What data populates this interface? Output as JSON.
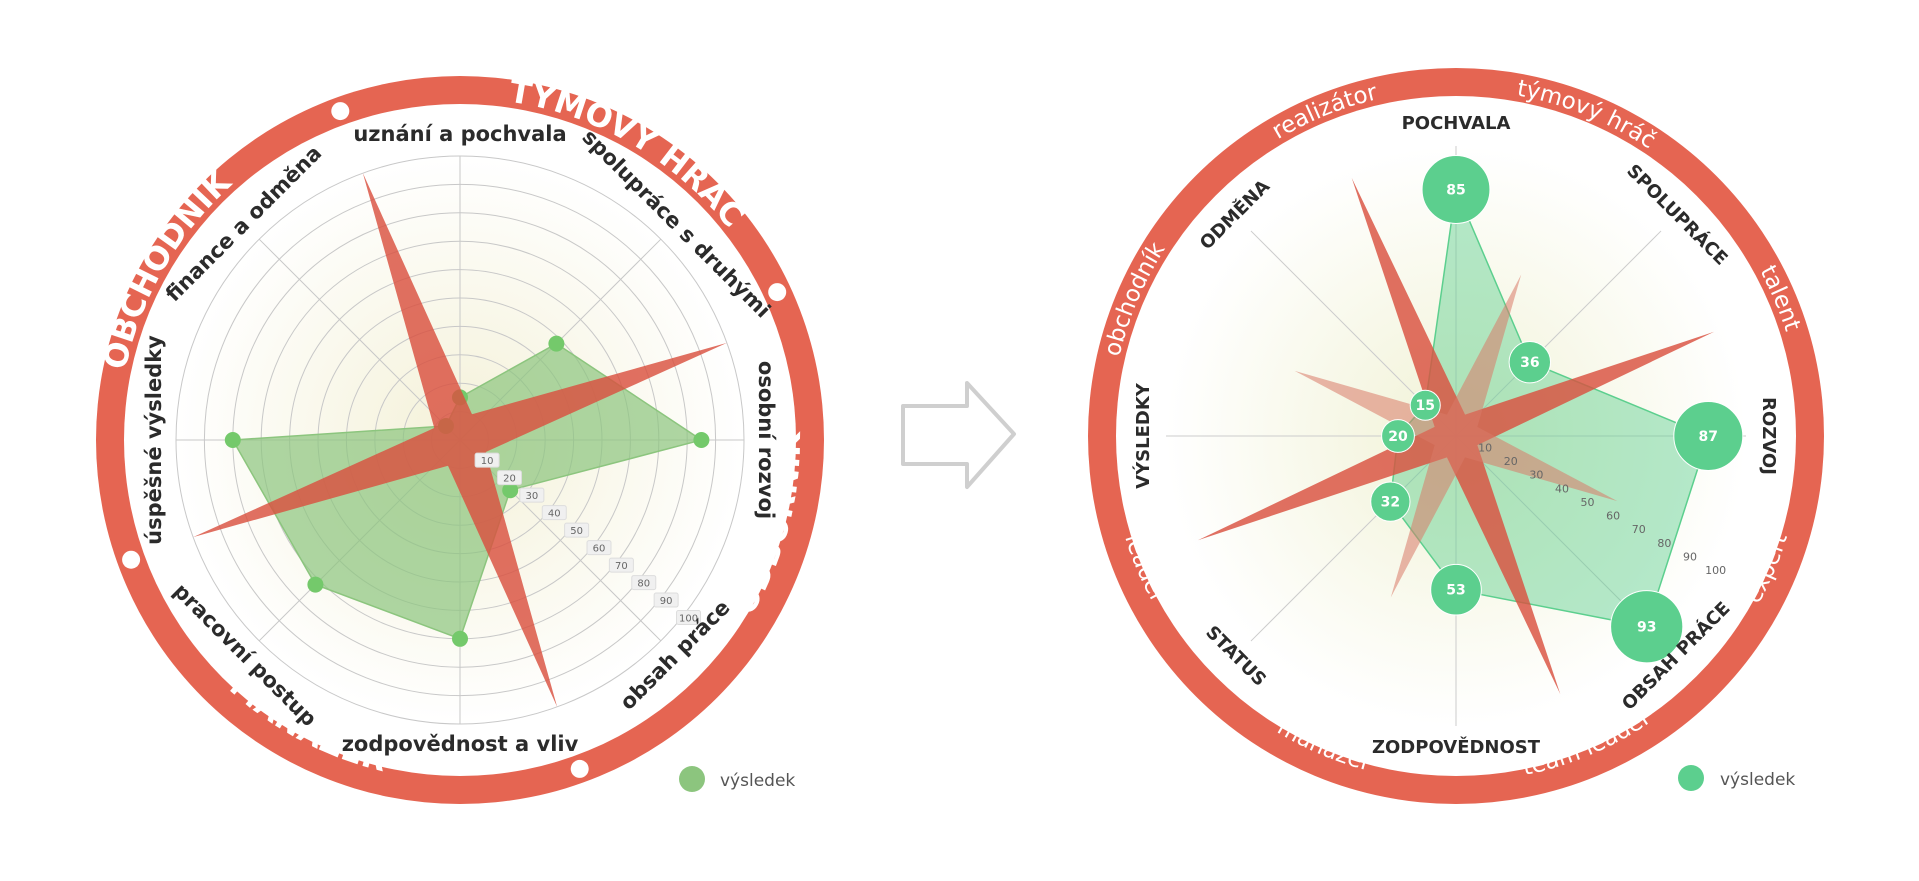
{
  "colors": {
    "ring": "#e56552",
    "star": "#d9503f",
    "left_series": "#8cc57e",
    "left_marker": "#74c96b",
    "right_series": "#5ccf8e",
    "arrow": "#cfcfcf",
    "legend_text": "#555555",
    "grid": "#c8c8c8"
  },
  "chart_data": [
    {
      "type": "radar",
      "ring_titles": [
        "TÝMOVÝ HRÁČ",
        "ODBORNÍK",
        "MANAŽER",
        "OBCHODNÍK"
      ],
      "categories": [
        "uznání a pochvala",
        "spolupráce s druhými",
        "osobní rozvoj",
        "obsah práce",
        "zodpovědnost a vliv",
        "pracovní postup",
        "úspěšné výsledky",
        "finance a odměna"
      ],
      "ticks": [
        "10",
        "20",
        "30",
        "40",
        "50",
        "60",
        "70",
        "80",
        "90",
        "100"
      ],
      "rmax": 100,
      "series": [
        {
          "name": "výsledek",
          "values": [
            15,
            48,
            85,
            25,
            70,
            72,
            80,
            7
          ]
        }
      ],
      "star_values": [
        100,
        10,
        100,
        10,
        100,
        10,
        100,
        10
      ],
      "legend": {
        "label": "výsledek",
        "position": "bottom-right"
      }
    },
    {
      "type": "radar-bubble",
      "ring_labels": [
        "týmový hráč",
        "talent",
        "expert",
        "team leader",
        "manažer",
        "leader",
        "obchodník",
        "realizátor"
      ],
      "categories": [
        "POCHVALA",
        "SPOLUPRÁCE",
        "ROZVOJ",
        "OBSAH PRÁCE",
        "ZODPOVĚDNOST",
        "STATUS",
        "VÝSLEDKY",
        "ODMĚNA"
      ],
      "ticks": [
        "10",
        "20",
        "30",
        "40",
        "50",
        "60",
        "70",
        "80",
        "90",
        "100"
      ],
      "rmax": 100,
      "series": [
        {
          "name": "výsledek",
          "values": [
            85,
            36,
            87,
            93,
            53,
            32,
            20,
            15
          ]
        }
      ],
      "value_labels": [
        "85",
        "36",
        "87",
        "93",
        "53",
        "32",
        "20",
        "15"
      ],
      "star_values": [
        96,
        8,
        96,
        8,
        96,
        8,
        96,
        8
      ],
      "inner_star_values": [
        60,
        8,
        60,
        8,
        60,
        8,
        60,
        8
      ],
      "legend": {
        "label": "výsledek",
        "position": "bottom-right"
      }
    }
  ]
}
